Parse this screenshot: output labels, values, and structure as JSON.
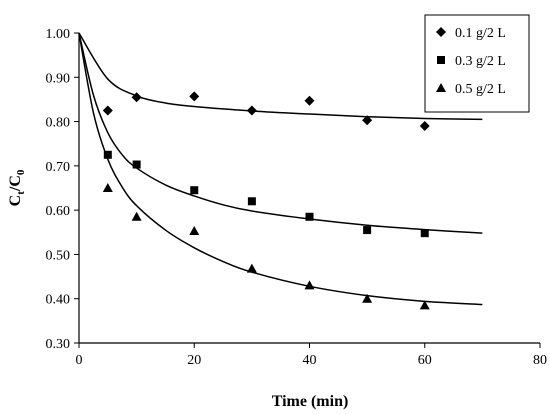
{
  "chart_data": {
    "type": "scatter",
    "title": "",
    "xlabel": "Time (min)",
    "ylabel": {
      "main": "C",
      "sub1": "t",
      "slash": "/C",
      "sub2": "0"
    },
    "xlim": [
      0,
      80
    ],
    "ylim": [
      0.3,
      1.0
    ],
    "xticks": [
      "0",
      "20",
      "40",
      "60",
      "80"
    ],
    "yticks": [
      "0.30",
      "0.40",
      "0.50",
      "0.60",
      "0.70",
      "0.80",
      "0.90",
      "1.00"
    ],
    "grid": false,
    "legend_position": "top-right",
    "series": [
      {
        "name": "0.1 g/2 L",
        "marker": "diamond",
        "color": "#000000",
        "points": [
          [
            5,
            0.825
          ],
          [
            10,
            0.855
          ],
          [
            20,
            0.857
          ],
          [
            30,
            0.825
          ],
          [
            40,
            0.847
          ],
          [
            50,
            0.803
          ],
          [
            60,
            0.79
          ]
        ],
        "fit": [
          [
            0,
            1.0
          ],
          [
            5,
            0.896
          ],
          [
            10,
            0.858
          ],
          [
            15,
            0.842
          ],
          [
            20,
            0.834
          ],
          [
            30,
            0.824
          ],
          [
            40,
            0.817
          ],
          [
            50,
            0.811
          ],
          [
            60,
            0.807
          ],
          [
            70,
            0.805
          ]
        ]
      },
      {
        "name": "0.3 g/2 L",
        "marker": "square",
        "color": "#000000",
        "points": [
          [
            5,
            0.725
          ],
          [
            10,
            0.703
          ],
          [
            20,
            0.645
          ],
          [
            30,
            0.62
          ],
          [
            40,
            0.585
          ],
          [
            50,
            0.555
          ],
          [
            60,
            0.548
          ]
        ],
        "fit": [
          [
            0,
            1.0
          ],
          [
            2.5,
            0.86
          ],
          [
            5,
            0.775
          ],
          [
            7.5,
            0.725
          ],
          [
            10,
            0.695
          ],
          [
            15,
            0.657
          ],
          [
            20,
            0.632
          ],
          [
            25,
            0.612
          ],
          [
            30,
            0.598
          ],
          [
            40,
            0.58
          ],
          [
            50,
            0.566
          ],
          [
            60,
            0.556
          ],
          [
            70,
            0.548
          ]
        ]
      },
      {
        "name": "0.5 g/2 L",
        "marker": "triangle",
        "color": "#000000",
        "points": [
          [
            5,
            0.65
          ],
          [
            10,
            0.585
          ],
          [
            20,
            0.553
          ],
          [
            30,
            0.468
          ],
          [
            40,
            0.43
          ],
          [
            50,
            0.4
          ],
          [
            60,
            0.385
          ]
        ],
        "fit": [
          [
            0,
            1.0
          ],
          [
            2.5,
            0.82
          ],
          [
            5,
            0.715
          ],
          [
            7.5,
            0.652
          ],
          [
            10,
            0.61
          ],
          [
            15,
            0.555
          ],
          [
            20,
            0.515
          ],
          [
            25,
            0.484
          ],
          [
            30,
            0.46
          ],
          [
            40,
            0.428
          ],
          [
            50,
            0.407
          ],
          [
            60,
            0.394
          ],
          [
            70,
            0.387
          ]
        ]
      }
    ]
  }
}
